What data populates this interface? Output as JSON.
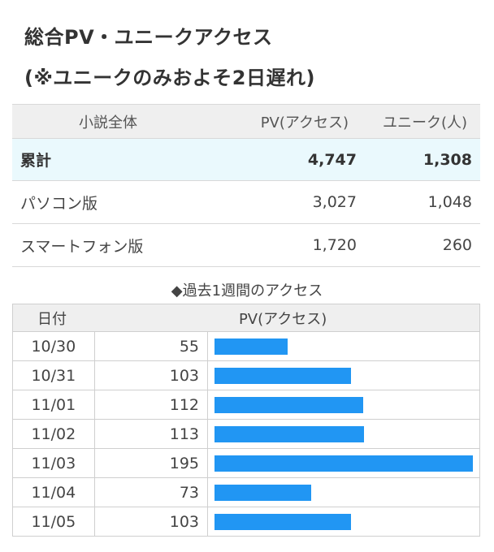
{
  "header": {
    "title_line1": "総合PV・ユニークアクセス",
    "title_line2": "(※ユニークのみおよそ2日遅れ)"
  },
  "summary": {
    "columns": [
      "小説全体",
      "PV(アクセス)",
      "ユニーク(人)"
    ],
    "rows": [
      {
        "label": "累計",
        "pv": "4,747",
        "unique": "1,308"
      },
      {
        "label": "パソコン版",
        "pv": "3,027",
        "unique": "1,048"
      },
      {
        "label": "スマートフォン版",
        "pv": "1,720",
        "unique": "260"
      }
    ]
  },
  "weekly": {
    "title": "◆過去1週間のアクセス",
    "columns": [
      "日付",
      "PV(アクセス)"
    ],
    "bar_color": "#2196f3"
  },
  "chart_data": {
    "type": "bar",
    "title": "◆過去1週間のアクセス",
    "categories": [
      "10/30",
      "10/31",
      "11/01",
      "11/02",
      "11/03",
      "11/04",
      "11/05"
    ],
    "values": [
      55,
      103,
      112,
      113,
      195,
      73,
      103
    ],
    "ylabel": "PV(アクセス)"
  }
}
